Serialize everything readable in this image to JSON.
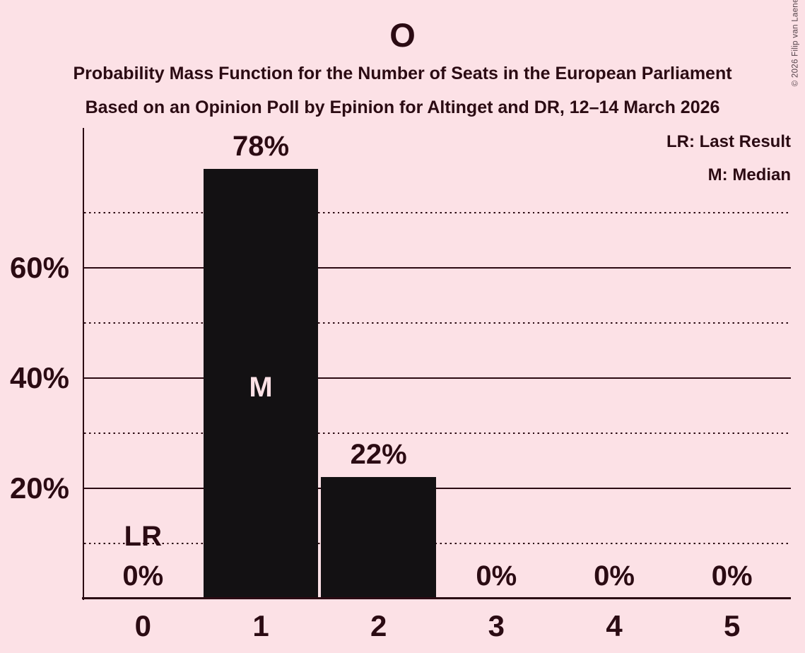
{
  "title": "O",
  "subtitle1": "Probability Mass Function for the Number of Seats in the European Parliament",
  "subtitle2": "Based on an Opinion Poll by Epinion for Altinget and DR, 12–14 March 2026",
  "copyright": "© 2026 Filip van Laenen",
  "legend": {
    "last_result": "LR: Last Result",
    "median": "M: Median"
  },
  "chart_data": {
    "type": "bar",
    "title": "O",
    "categories": [
      "0",
      "1",
      "2",
      "3",
      "4",
      "5"
    ],
    "values": [
      0,
      78,
      22,
      0,
      0,
      0
    ],
    "value_labels": [
      "0%",
      "78%",
      "22%",
      "0%",
      "0%",
      "0%"
    ],
    "yticks": [
      {
        "pct": 20,
        "label": "20%"
      },
      {
        "pct": 40,
        "label": "40%"
      },
      {
        "pct": 60,
        "label": "60%"
      }
    ],
    "solid_gridlines_pct": [
      20,
      40,
      60
    ],
    "dotted_gridlines_pct": [
      10,
      30,
      50,
      70
    ],
    "ylim": [
      0,
      85
    ],
    "grid": true,
    "legend_position": "top-right",
    "annotations": {
      "median_index": 1,
      "median_label": "M",
      "last_result_index": 0,
      "last_result_label": "LR",
      "last_result_line_pct": 10
    },
    "colors": {
      "background": "#fce1e6",
      "bar": "#131113",
      "text": "#2b0b13",
      "median_text": "#fce1e6",
      "copyright_text": "#54434a"
    }
  }
}
